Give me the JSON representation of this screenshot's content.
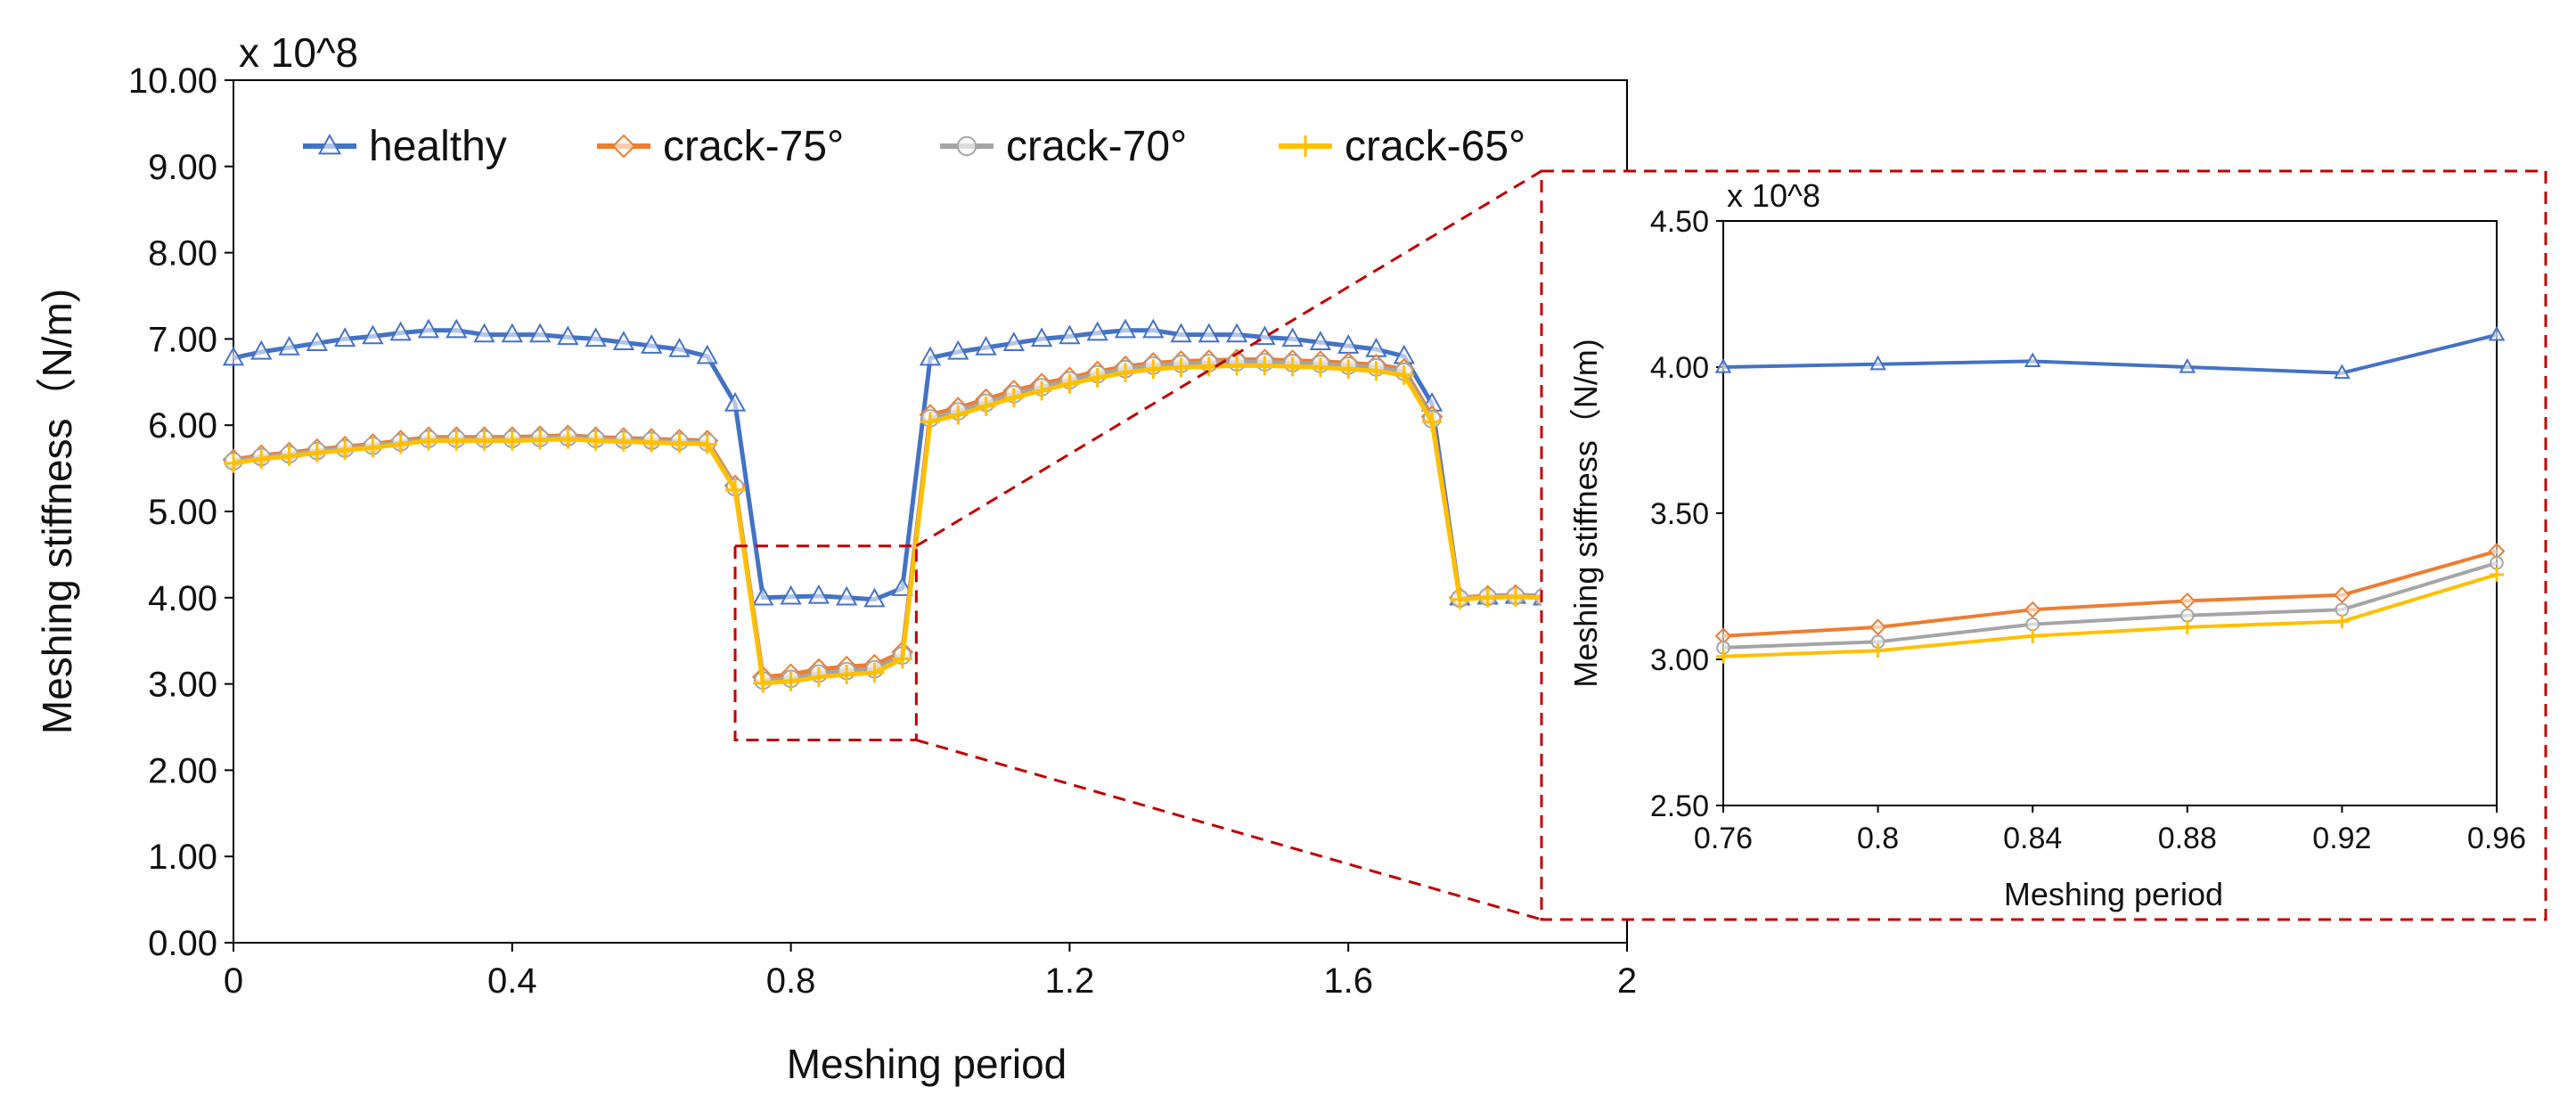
{
  "chart_data": [
    {
      "id": "main",
      "type": "line",
      "title": "",
      "xlabel": "Meshing period",
      "ylabel": "Meshing stiffness（N/m)",
      "multiplier_label": "x 10^8",
      "xlim": [
        0,
        2
      ],
      "ylim": [
        0,
        10
      ],
      "xticks": [
        "0",
        "0.4",
        "0.8",
        "1.2",
        "1.6",
        "2"
      ],
      "yticks": [
        "0.00",
        "1.00",
        "2.00",
        "3.00",
        "4.00",
        "5.00",
        "6.00",
        "7.00",
        "8.00",
        "9.00",
        "10.00"
      ],
      "legend_position": "top",
      "series": [
        {
          "name": "healthy",
          "color": "#4472C4",
          "marker": "triangle",
          "x": [
            0,
            0.04,
            0.08,
            0.12,
            0.16,
            0.2,
            0.24,
            0.28,
            0.32,
            0.36,
            0.4,
            0.44,
            0.48,
            0.52,
            0.56,
            0.6,
            0.64,
            0.68,
            0.72,
            0.76,
            0.8,
            0.84,
            0.88,
            0.92,
            0.96,
            1.0,
            1.04,
            1.08,
            1.12,
            1.16,
            1.2,
            1.24,
            1.28,
            1.32,
            1.36,
            1.4,
            1.44,
            1.48,
            1.52,
            1.56,
            1.6,
            1.64,
            1.68,
            1.72,
            1.76,
            1.8,
            1.84,
            1.88
          ],
          "values": [
            6.78,
            6.85,
            6.9,
            6.95,
            7.0,
            7.03,
            7.07,
            7.1,
            7.1,
            7.05,
            7.05,
            7.05,
            7.02,
            7.0,
            6.96,
            6.92,
            6.88,
            6.8,
            6.25,
            4.0,
            4.01,
            4.02,
            4.0,
            3.98,
            4.11,
            6.78,
            6.85,
            6.9,
            6.95,
            7.0,
            7.03,
            7.07,
            7.1,
            7.1,
            7.05,
            7.05,
            7.05,
            7.02,
            7.0,
            6.96,
            6.92,
            6.88,
            6.8,
            6.25,
            4.0,
            4.01,
            4.02,
            4.0
          ]
        },
        {
          "name": "crack-75°",
          "color": "#ED7D31",
          "marker": "diamond",
          "x": [
            0,
            0.04,
            0.08,
            0.12,
            0.16,
            0.2,
            0.24,
            0.28,
            0.32,
            0.36,
            0.4,
            0.44,
            0.48,
            0.52,
            0.56,
            0.6,
            0.64,
            0.68,
            0.72,
            0.76,
            0.8,
            0.84,
            0.88,
            0.92,
            0.96,
            1.0,
            1.04,
            1.08,
            1.12,
            1.16,
            1.2,
            1.24,
            1.28,
            1.32,
            1.36,
            1.4,
            1.44,
            1.48,
            1.52,
            1.56,
            1.6,
            1.64,
            1.68,
            1.72,
            1.76,
            1.8,
            1.84,
            1.88
          ],
          "values": [
            5.6,
            5.65,
            5.68,
            5.72,
            5.75,
            5.78,
            5.82,
            5.86,
            5.86,
            5.86,
            5.86,
            5.87,
            5.88,
            5.86,
            5.85,
            5.84,
            5.83,
            5.82,
            5.3,
            3.08,
            3.11,
            3.17,
            3.2,
            3.22,
            3.37,
            6.12,
            6.2,
            6.3,
            6.4,
            6.48,
            6.55,
            6.62,
            6.68,
            6.72,
            6.74,
            6.75,
            6.76,
            6.76,
            6.75,
            6.74,
            6.72,
            6.7,
            6.65,
            6.1,
            4.0,
            4.02,
            4.03,
            4.02
          ]
        },
        {
          "name": "crack-70°",
          "color": "#A5A5A5",
          "marker": "circle",
          "x": [
            0,
            0.04,
            0.08,
            0.12,
            0.16,
            0.2,
            0.24,
            0.28,
            0.32,
            0.36,
            0.4,
            0.44,
            0.48,
            0.52,
            0.56,
            0.6,
            0.64,
            0.68,
            0.72,
            0.76,
            0.8,
            0.84,
            0.88,
            0.92,
            0.96,
            1.0,
            1.04,
            1.08,
            1.12,
            1.16,
            1.2,
            1.24,
            1.28,
            1.32,
            1.36,
            1.4,
            1.44,
            1.48,
            1.52,
            1.56,
            1.6,
            1.64,
            1.68,
            1.72,
            1.76,
            1.8,
            1.84,
            1.88
          ],
          "values": [
            5.58,
            5.63,
            5.66,
            5.7,
            5.73,
            5.76,
            5.8,
            5.84,
            5.84,
            5.84,
            5.84,
            5.85,
            5.86,
            5.84,
            5.83,
            5.82,
            5.81,
            5.8,
            5.28,
            3.04,
            3.06,
            3.12,
            3.15,
            3.17,
            3.33,
            6.08,
            6.16,
            6.26,
            6.36,
            6.44,
            6.52,
            6.59,
            6.65,
            6.69,
            6.71,
            6.72,
            6.73,
            6.73,
            6.72,
            6.71,
            6.69,
            6.67,
            6.62,
            6.07,
            3.99,
            4.01,
            4.02,
            4.01
          ]
        },
        {
          "name": "crack-65°",
          "color": "#FFC000",
          "marker": "plus",
          "x": [
            0,
            0.04,
            0.08,
            0.12,
            0.16,
            0.2,
            0.24,
            0.28,
            0.32,
            0.36,
            0.4,
            0.44,
            0.48,
            0.52,
            0.56,
            0.6,
            0.64,
            0.68,
            0.72,
            0.76,
            0.8,
            0.84,
            0.88,
            0.92,
            0.96,
            1.0,
            1.04,
            1.08,
            1.12,
            1.16,
            1.2,
            1.24,
            1.28,
            1.32,
            1.36,
            1.4,
            1.44,
            1.48,
            1.52,
            1.56,
            1.6,
            1.64,
            1.68,
            1.72,
            1.76,
            1.8,
            1.84,
            1.88
          ],
          "values": [
            5.56,
            5.61,
            5.64,
            5.68,
            5.71,
            5.74,
            5.78,
            5.82,
            5.82,
            5.82,
            5.82,
            5.83,
            5.84,
            5.82,
            5.81,
            5.8,
            5.79,
            5.78,
            5.25,
            3.01,
            3.03,
            3.08,
            3.11,
            3.13,
            3.29,
            6.04,
            6.12,
            6.22,
            6.32,
            6.4,
            6.48,
            6.55,
            6.61,
            6.65,
            6.67,
            6.68,
            6.69,
            6.69,
            6.68,
            6.67,
            6.65,
            6.63,
            6.58,
            6.04,
            3.98,
            4.0,
            4.01,
            4.0
          ]
        }
      ]
    },
    {
      "id": "inset",
      "type": "line",
      "title": "",
      "xlabel": "Meshing period",
      "ylabel": "Meshing stiffness（N/m)",
      "multiplier_label": "x 10^8",
      "xlim": [
        0.76,
        0.96
      ],
      "ylim": [
        2.5,
        4.5
      ],
      "xticks": [
        "0.76",
        "0.8",
        "0.84",
        "0.88",
        "0.92",
        "0.96"
      ],
      "yticks": [
        "2.50",
        "3.00",
        "3.50",
        "4.00",
        "4.50"
      ],
      "zoom_region": {
        "x": [
          0.72,
          0.98
        ],
        "y": [
          2.35,
          4.6
        ]
      },
      "series": [
        {
          "name": "healthy",
          "color": "#4472C4",
          "marker": "triangle",
          "x": [
            0.76,
            0.8,
            0.84,
            0.88,
            0.92,
            0.96
          ],
          "values": [
            4.0,
            4.01,
            4.02,
            4.0,
            3.98,
            4.11
          ]
        },
        {
          "name": "crack-75°",
          "color": "#ED7D31",
          "marker": "diamond",
          "x": [
            0.76,
            0.8,
            0.84,
            0.88,
            0.92,
            0.96
          ],
          "values": [
            3.08,
            3.11,
            3.17,
            3.2,
            3.22,
            3.37
          ]
        },
        {
          "name": "crack-70°",
          "color": "#A5A5A5",
          "marker": "circle",
          "x": [
            0.76,
            0.8,
            0.84,
            0.88,
            0.92,
            0.96
          ],
          "values": [
            3.04,
            3.06,
            3.12,
            3.15,
            3.17,
            3.33
          ]
        },
        {
          "name": "crack-65°",
          "color": "#FFC000",
          "marker": "plus",
          "x": [
            0.76,
            0.8,
            0.84,
            0.88,
            0.92,
            0.96
          ],
          "values": [
            3.01,
            3.03,
            3.08,
            3.11,
            3.13,
            3.29
          ]
        }
      ]
    }
  ],
  "colors": {
    "zoom_box": "#C00000",
    "axis": "#000000"
  }
}
